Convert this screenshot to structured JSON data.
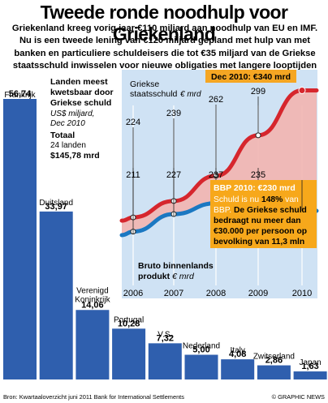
{
  "header": {
    "title": "Tweede ronde noodhulp voor Griekenland",
    "subtitle_lines": [
      "Griekenland kreeg vorig jaar €110 miljard aan noodhulp van EU en IMF.",
      "Nu is een tweede lening van €120 miljard gepland met hulp van met",
      "banken en particuliere schuldeisers die tot €35 miljard van de Griekse",
      "staatsschuld inwisselen voor nieuwe obligaties met langere looptijden"
    ]
  },
  "colors": {
    "bar_blue": "#2f5fae",
    "panel_blue": "#cfe2f4",
    "debt_red": "#d6262d",
    "debt_area": "#f2b5b0",
    "gdp_blue": "#1b78c2",
    "highlight_orange": "#f5a623",
    "callout_bg": "#f7a81b"
  },
  "chart_data": [
    {
      "type": "bar",
      "title": "Landen meest kwetsbaar door Griekse schuld",
      "unit_label": "US$ miljard,",
      "date_label": "Dec 2010",
      "total_label": "Totaal",
      "total_count": "24 landen",
      "total_value": "$145,78 mrd",
      "categories": [
        "Frankrijk",
        "Duitsland",
        "Verenigd Koninkrijk",
        "Portugal",
        "V.S.",
        "Nederland",
        "Italy",
        "Zwitserland",
        "Japan"
      ],
      "category_lines": [
        [
          "Frankrijk"
        ],
        [
          "Duitsland"
        ],
        [
          "Verenigd",
          "Koninkrijk"
        ],
        [
          "Portugal"
        ],
        [
          "V.S."
        ],
        [
          "Nederland"
        ],
        [
          "Italy"
        ],
        [
          "Zwitserland"
        ],
        [
          "Japan"
        ]
      ],
      "values": [
        56.74,
        33.97,
        14.06,
        10.28,
        7.32,
        5.0,
        4.08,
        2.86,
        1.63
      ],
      "value_labels": [
        "56,74",
        "33,97",
        "14,06",
        "10,28",
        "7,32",
        "5,00",
        "4,08",
        "2,86",
        "1,63"
      ]
    },
    {
      "type": "line",
      "x": [
        2006,
        2007,
        2008,
        2009,
        2010
      ],
      "x_labels": [
        "2006",
        "2007",
        "2008",
        "2009",
        "2010"
      ],
      "series": [
        {
          "name": "Griekse staatsschuld",
          "unit": "€ mrd",
          "values": [
            224,
            239,
            262,
            299,
            340
          ],
          "value_labels": [
            "224",
            "239",
            "262",
            "299",
            "340"
          ]
        },
        {
          "name": "Bruto binnenlands produkt",
          "unit": "€ mrd",
          "values": [
            211,
            227,
            237,
            235,
            230
          ],
          "value_labels": [
            "211",
            "227",
            "237",
            "235",
            "230"
          ]
        }
      ],
      "debt_highlight": "Dec 2010: €340 mrd",
      "callout": {
        "title": "BBP 2010: €230 mrd",
        "lines": [
          [
            "Schuld is nu ",
            "148%",
            " van"
          ],
          [
            "BBP. ",
            "De Griekse schuld",
            ""
          ],
          [
            "",
            "bedraagt nu meer dan",
            ""
          ],
          [
            "",
            "€30.000 per persoon op",
            ""
          ],
          [
            "",
            "bevolking van 11,3 mln",
            ""
          ]
        ]
      }
    }
  ],
  "footer": {
    "source": "Bron: Kwartaaloverzicht juni 2011 Bank for International Settlements",
    "credit": "© GRAPHIC NEWS"
  }
}
